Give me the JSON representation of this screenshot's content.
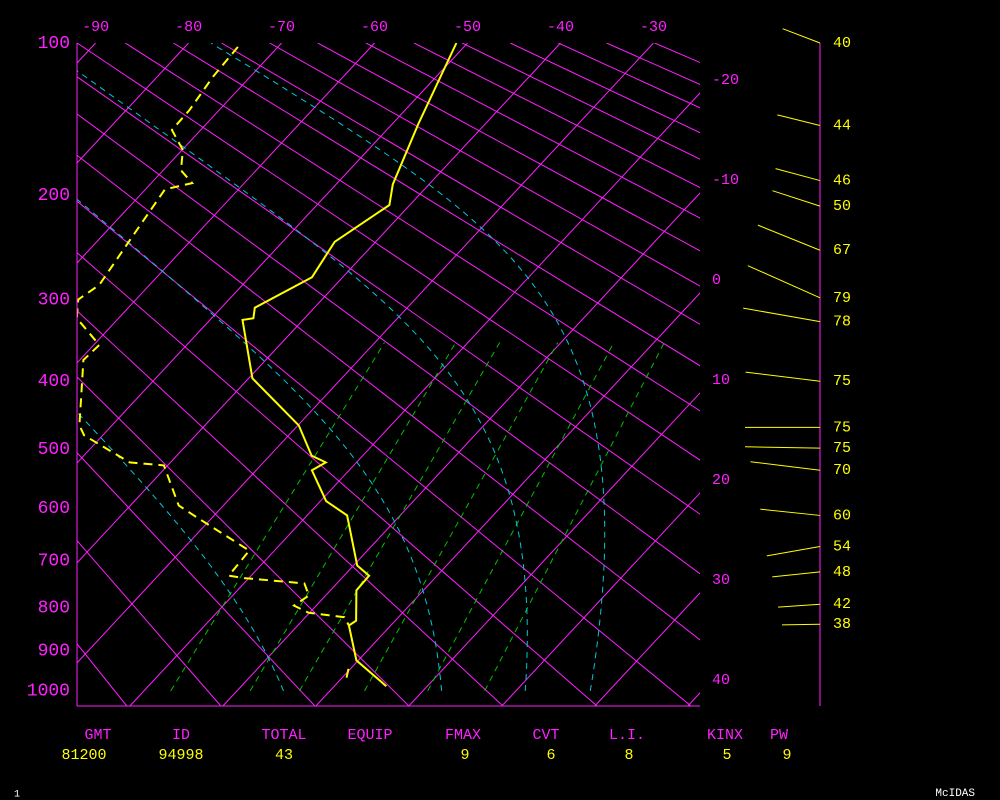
{
  "chart_data": {
    "type": "skewt",
    "xlim": [
      -92,
      -25
    ],
    "xticks": [
      -90,
      -80,
      -70,
      -60,
      -50,
      -40,
      -30
    ],
    "xticks_right": [
      -20,
      -10,
      0,
      10,
      20,
      30,
      40
    ],
    "ylim": [
      100,
      1040
    ],
    "yticks": [
      100,
      200,
      300,
      400,
      500,
      600,
      700,
      800,
      900,
      1000
    ],
    "series": [
      {
        "color": "#ffff00",
        "dashed": false,
        "pressure": [
          100,
          147,
          191,
          208,
          241,
          276,
          309,
          321,
          323,
          396,
          463,
          510,
          521,
          534,
          587,
          613,
          710,
          731,
          762,
          829,
          840,
          923,
          988
        ],
        "values": [
          -51.2,
          -47.2,
          -43.9,
          -42.2,
          -44.4,
          -43.3,
          -46.4,
          -45.5,
          -46.5,
          -39.6,
          -29.9,
          -25.5,
          -23.3,
          -24,
          -19.4,
          -15.7,
          -9.6,
          -7.3,
          -7.2,
          -4.2,
          -4.5,
          -0.2,
          5.6
        ]
      },
      {
        "color": "#ffff00",
        "dashed": true,
        "pressure": [
          102,
          118,
          138,
          151,
          165,
          180,
          190,
          195,
          239,
          284,
          300,
          321,
          353,
          372,
          412,
          463,
          478,
          521,
          526,
          595,
          617,
          680,
          731,
          736,
          747,
          773,
          795,
          811,
          821,
          840,
          null,
          944,
          974
        ],
        "values": [
          -74.3,
          -74,
          -73.2,
          -73.1,
          -69.9,
          -68.1,
          -65.6,
          -67.9,
          -66.6,
          -65.4,
          -66.2,
          -64.5,
          -59.4,
          -59.6,
          -56.8,
          -53.5,
          -52,
          -44.4,
          -40.4,
          -34.8,
          -31.6,
          -22.7,
          -22.4,
          -20.5,
          -13.5,
          -11.8,
          -12.4,
          -10.1,
          -5.8,
          -4.5,
          null,
          -0.2,
          0.7
        ]
      }
    ],
    "winds": {
      "color": "#ffff00",
      "pressure": [
        100,
        148,
        188,
        209,
        249,
        298,
        325,
        400,
        466,
        498,
        534,
        613,
        672,
        723,
        792,
        837
      ],
      "speed": [
        40,
        44,
        46,
        50,
        67,
        79,
        78,
        75,
        75,
        75,
        70,
        60,
        54,
        48,
        42,
        38
      ],
      "direction": [
        291,
        284,
        285,
        288,
        292,
        294,
        280,
        277,
        270,
        271,
        277,
        276,
        260,
        264,
        266,
        269
      ]
    }
  },
  "footer": {
    "columns": [
      {
        "label": "GMT",
        "value": "81200"
      },
      {
        "label": "ID",
        "value": "94998"
      },
      {
        "label": "TOTAL",
        "value": 43
      },
      {
        "label": "EQUIP"
      },
      {
        "label": "FMAX",
        "value": 9
      },
      {
        "label": "CVT",
        "value": 6
      },
      {
        "label": "L.I.",
        "value": 8
      },
      {
        "label": "KINX",
        "value": 5
      },
      {
        "label": "PW",
        "value": 9
      }
    ],
    "page_number": "1",
    "brand": "McIDAS"
  }
}
